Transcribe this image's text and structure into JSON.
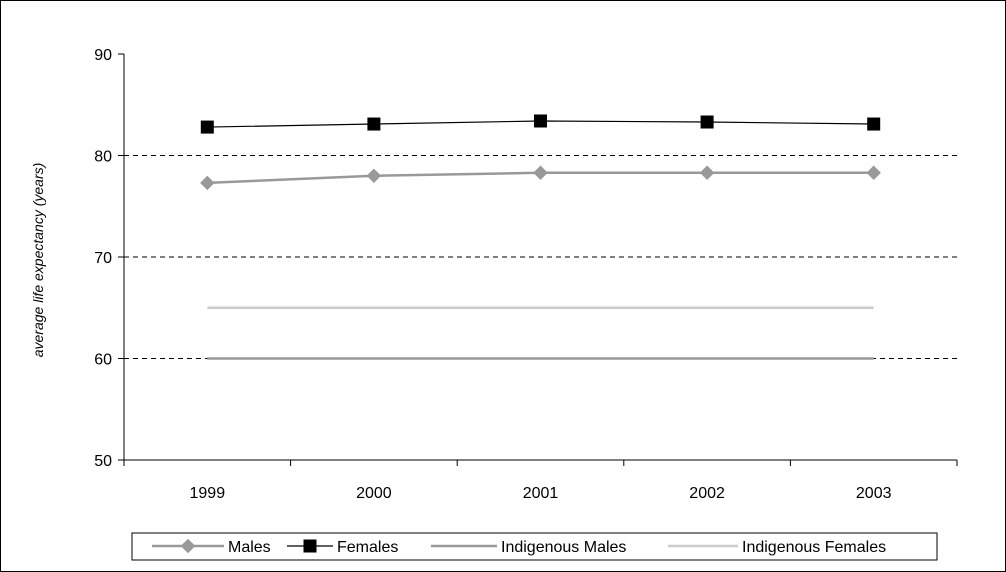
{
  "chart_data": {
    "type": "line",
    "title": "",
    "xlabel": "",
    "ylabel": "average life expectancy (years)",
    "categories": [
      "1999",
      "2000",
      "2001",
      "2002",
      "2003"
    ],
    "ylim": [
      50,
      90
    ],
    "yticks": [
      50,
      60,
      70,
      80,
      90
    ],
    "grid": "dashed horizontal at 60, 70, 80",
    "legend_position": "bottom",
    "series": [
      {
        "name": "Males",
        "values": [
          77.3,
          78.0,
          78.3,
          78.3,
          78.3
        ],
        "color": "#999999",
        "marker": "diamond"
      },
      {
        "name": "Females",
        "values": [
          82.8,
          83.1,
          83.4,
          83.3,
          83.1
        ],
        "color": "#000000",
        "marker": "square"
      },
      {
        "name": "Indigenous Males",
        "values": [
          60,
          60,
          60,
          60,
          60
        ],
        "color": "#999999",
        "marker": "none"
      },
      {
        "name": "Indigenous Females",
        "values": [
          65,
          65,
          65,
          65,
          65
        ],
        "color": "#cccccc",
        "marker": "none"
      }
    ]
  }
}
